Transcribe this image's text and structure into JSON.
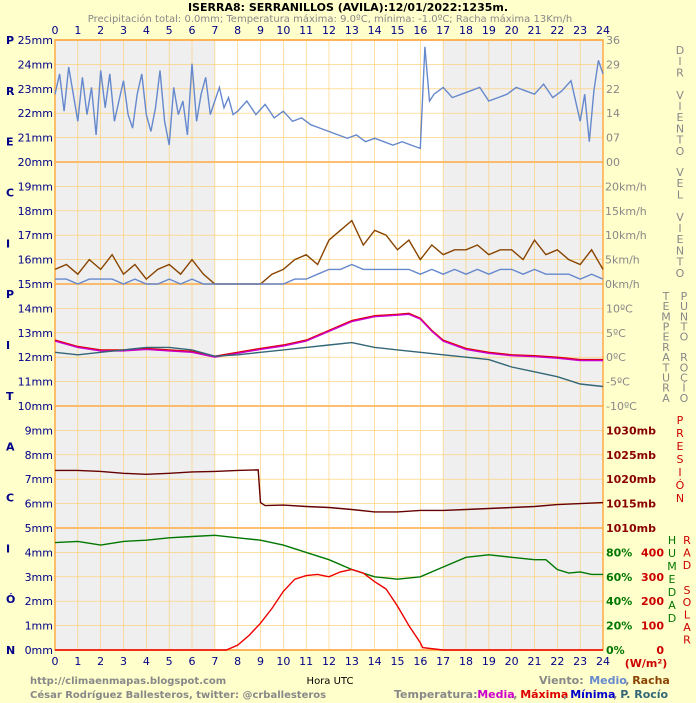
{
  "chart_data": {
    "type": "line",
    "title": "ISERRA8: SERRANILLOS (AVILA):12/01/2022:1235m.",
    "subtitle": "Precipitación total: 0.0mm; Temperatura máxima: 9.0ºC, mínima: -1.0ºC; Racha máxima 13Km/h",
    "xlabel": "Hora UTC",
    "x_ticks": [
      "0",
      "1",
      "2",
      "3",
      "4",
      "5",
      "6",
      "7",
      "8",
      "9",
      "10",
      "11",
      "12",
      "13",
      "14",
      "15",
      "16",
      "17",
      "18",
      "19",
      "20",
      "21",
      "22",
      "23",
      "24"
    ],
    "xlim": [
      0,
      24
    ],
    "left_axis": {
      "title_letters": [
        "P",
        "R",
        "E",
        "C",
        "I",
        "P",
        "I",
        "T",
        "A",
        "C",
        "I",
        "Ó",
        "N"
      ],
      "ticks": [
        "0mm",
        "1mm",
        "2mm",
        "3mm",
        "4mm",
        "5mm",
        "6mm",
        "7mm",
        "8mm",
        "9mm",
        "10mm",
        "11mm",
        "12mm",
        "13mm",
        "14mm",
        "15mm",
        "16mm",
        "17mm",
        "18mm",
        "19mm",
        "20mm",
        "21mm",
        "22mm",
        "23mm",
        "24mm",
        "25mm"
      ],
      "ylim": [
        0,
        25
      ]
    },
    "panels": [
      {
        "name": "direccion_viento",
        "axis_title": "DIR VIENTO",
        "ticks": [
          "00",
          "07",
          "14",
          "22",
          "29",
          "36"
        ],
        "ylim": [
          0,
          36
        ],
        "series": [
          {
            "color": "#6688cc",
            "x": [
              0,
              0.2,
              0.4,
              0.6,
              0.8,
              1,
              1.2,
              1.4,
              1.6,
              1.8,
              2,
              2.2,
              2.4,
              2.6,
              2.8,
              3,
              3.2,
              3.4,
              3.6,
              3.8,
              4,
              4.2,
              4.4,
              4.6,
              4.8,
              5,
              5.2,
              5.4,
              5.6,
              5.8,
              6,
              6.2,
              6.4,
              6.6,
              6.8,
              7,
              7.2,
              7.4,
              7.6,
              7.8,
              8,
              8.4,
              8.8,
              9.2,
              9.6,
              10,
              10.4,
              10.8,
              11.2,
              11.6,
              12,
              12.4,
              12.8,
              13.2,
              13.6,
              14,
              14.4,
              14.8,
              15.2,
              15.6,
              16,
              16.2,
              16.4,
              16.6,
              16.8,
              17,
              17.4,
              17.8,
              18.2,
              18.6,
              19,
              19.4,
              19.8,
              20.2,
              20.6,
              21,
              21.4,
              21.8,
              22.2,
              22.6,
              23,
              23.2,
              23.4,
              23.6,
              23.8,
              24
            ],
            "y": [
              20,
              26,
              15,
              28,
              20,
              12,
              25,
              14,
              22,
              8,
              27,
              16,
              26,
              12,
              18,
              24,
              14,
              10,
              20,
              26,
              14,
              9,
              16,
              27,
              12,
              5,
              22,
              14,
              18,
              8,
              29,
              12,
              20,
              25,
              14,
              18,
              22,
              16,
              19,
              14,
              15,
              18,
              14,
              17,
              13,
              15,
              12,
              13,
              11,
              10,
              9,
              8,
              7,
              8,
              6,
              7,
              6,
              5,
              6,
              5,
              4,
              34,
              18,
              20,
              21,
              22,
              19,
              20,
              21,
              22,
              18,
              19,
              20,
              22,
              21,
              20,
              23,
              19,
              21,
              24,
              12,
              20,
              6,
              21,
              30,
              26
            ]
          }
        ]
      },
      {
        "name": "velocidad_viento",
        "axis_title": "VEL VIENTO",
        "ticks": [
          "0km/h",
          "5km/h",
          "10km/h",
          "15km/h",
          "20km/h"
        ],
        "ylim": [
          0,
          25
        ],
        "series": [
          {
            "name": "Racha",
            "color": "#884400",
            "x": [
              0,
              0.5,
              1,
              1.5,
              2,
              2.5,
              3,
              3.5,
              4,
              4.5,
              5,
              5.5,
              6,
              6.5,
              7,
              7.5,
              8,
              8.5,
              9,
              9.5,
              10,
              10.5,
              11,
              11.5,
              12,
              12.5,
              13,
              13.5,
              14,
              14.5,
              15,
              15.5,
              16,
              16.5,
              17,
              17.5,
              18,
              18.5,
              19,
              19.5,
              20,
              20.5,
              21,
              21.5,
              22,
              22.5,
              23,
              23.5,
              24
            ],
            "y": [
              3,
              4,
              2,
              5,
              3,
              6,
              2,
              4,
              1,
              3,
              4,
              2,
              5,
              2,
              0,
              0,
              0,
              0,
              0,
              2,
              3,
              5,
              6,
              4,
              9,
              11,
              13,
              8,
              11,
              10,
              7,
              9,
              5,
              8,
              6,
              7,
              7,
              8,
              6,
              7,
              7,
              5,
              9,
              6,
              7,
              5,
              4,
              7,
              3
            ]
          },
          {
            "name": "Medio",
            "color": "#6688cc",
            "x": [
              0,
              0.5,
              1,
              1.5,
              2,
              2.5,
              3,
              3.5,
              4,
              4.5,
              5,
              5.5,
              6,
              6.5,
              7,
              7.5,
              8,
              8.5,
              9,
              9.5,
              10,
              10.5,
              11,
              11.5,
              12,
              12.5,
              13,
              13.5,
              14,
              14.5,
              15,
              15.5,
              16,
              16.5,
              17,
              17.5,
              18,
              18.5,
              19,
              19.5,
              20,
              20.5,
              21,
              21.5,
              22,
              22.5,
              23,
              23.5,
              24
            ],
            "y": [
              1,
              1,
              0,
              1,
              1,
              1,
              0,
              1,
              0,
              0,
              1,
              0,
              1,
              0,
              0,
              0,
              0,
              0,
              0,
              0,
              0,
              1,
              1,
              2,
              3,
              3,
              4,
              3,
              3,
              3,
              3,
              3,
              2,
              3,
              2,
              3,
              2,
              3,
              2,
              3,
              3,
              2,
              3,
              2,
              2,
              2,
              1,
              2,
              1
            ]
          }
        ]
      },
      {
        "name": "temperatura",
        "axis_title": "TEMPERATURA",
        "axis_title2": "PUNTO ROCÍO",
        "ticks": [
          "-10ºC",
          "-5ºC",
          "0ºC",
          "5ºC",
          "10ºC"
        ],
        "ylim": [
          -10,
          15
        ],
        "series": [
          {
            "name": "Máxima",
            "color": "#dd0000",
            "x": [
              0,
              1,
              2,
              3,
              4,
              5,
              6,
              7,
              8,
              9,
              10,
              11,
              12,
              13,
              14,
              15,
              15.5,
              16,
              16.5,
              17,
              18,
              19,
              20,
              21,
              22,
              23,
              24
            ],
            "y": [
              3.5,
              2.2,
              1.5,
              1.5,
              1.8,
              1.5,
              1.2,
              0.2,
              1,
              1.8,
              2.5,
              3.5,
              5.5,
              7.5,
              8.5,
              8.8,
              9.0,
              8,
              5.5,
              3.5,
              1.8,
              1.0,
              0.5,
              0.3,
              0,
              -0.5,
              -0.5
            ]
          },
          {
            "name": "Media",
            "color": "#cc00cc",
            "x": [
              0,
              1,
              2,
              3,
              4,
              5,
              6,
              7,
              8,
              9,
              10,
              11,
              12,
              13,
              14,
              15,
              15.5,
              16,
              16.5,
              17,
              18,
              19,
              20,
              21,
              22,
              23,
              24
            ],
            "y": [
              3.3,
              2.0,
              1.3,
              1.3,
              1.6,
              1.3,
              1.0,
              0,
              0.8,
              1.6,
              2.3,
              3.3,
              5.3,
              7.3,
              8.3,
              8.6,
              8.8,
              7.8,
              5.3,
              3.3,
              1.6,
              0.8,
              0.3,
              0.1,
              -0.2,
              -0.7,
              -0.7
            ]
          },
          {
            "name": "P. Rocío",
            "color": "#336677",
            "x": [
              0,
              1,
              2,
              3,
              4,
              5,
              6,
              7,
              8,
              9,
              10,
              11,
              12,
              13,
              14,
              15,
              16,
              17,
              18,
              19,
              20,
              21,
              22,
              23,
              24
            ],
            "y": [
              1,
              0.5,
              1,
              1.5,
              2,
              2,
              1.5,
              0.2,
              0.5,
              1,
              1.5,
              2,
              2.5,
              3,
              2,
              1.5,
              1,
              0.5,
              0,
              -0.5,
              -2,
              -3,
              -4,
              -5.5,
              -6
            ]
          }
        ]
      },
      {
        "name": "presion",
        "axis_title": "PRESIÓN",
        "ticks": [
          "1010mb",
          "1015mb",
          "1020mb",
          "1025mb",
          "1030mb"
        ],
        "ylim": [
          1010,
          1035
        ],
        "series": [
          {
            "color": "#660000",
            "x": [
              0,
              1,
              2,
              3,
              4,
              5,
              6,
              7,
              8,
              8.9,
              9.0,
              9.2,
              10,
              11,
              12,
              13,
              14,
              15,
              16,
              17,
              18,
              19,
              20,
              21,
              22,
              23,
              24
            ],
            "y": [
              1021.8,
              1021.8,
              1021.6,
              1021.2,
              1021.0,
              1021.2,
              1021.5,
              1021.6,
              1021.8,
              1021.9,
              1015.2,
              1014.6,
              1014.7,
              1014.4,
              1014.2,
              1013.8,
              1013.3,
              1013.3,
              1013.6,
              1013.6,
              1013.8,
              1014.0,
              1014.2,
              1014.4,
              1014.8,
              1015.0,
              1015.2
            ]
          }
        ]
      },
      {
        "name": "humedad_radiacion",
        "axis_title": "HUMEDAD",
        "axis_title2": "RAD SOLAR",
        "ticks_humedad": [
          "0%",
          "20%",
          "40%",
          "60%",
          "80%"
        ],
        "ticks_radiacion": [
          "0",
          "100",
          "200",
          "300",
          "400"
        ],
        "radiacion_unit": "(W/m²)",
        "ylim_humedad": [
          0,
          100
        ],
        "ylim_radiacion": [
          0,
          500
        ],
        "series": [
          {
            "name": "Humedad",
            "color": "#007700",
            "axis": "humedad",
            "x": [
              0,
              1,
              2,
              3,
              4,
              5,
              6,
              7,
              8,
              9,
              10,
              11,
              12,
              13,
              14,
              15,
              16,
              17,
              18,
              19,
              20,
              21,
              21.5,
              22,
              22.5,
              23,
              23.5,
              24
            ],
            "y": [
              88,
              89,
              86,
              89,
              90,
              92,
              93,
              94,
              92,
              90,
              86,
              80,
              74,
              66,
              60,
              58,
              60,
              68,
              76,
              78,
              76,
              74,
              74,
              66,
              63,
              64,
              62,
              62
            ]
          },
          {
            "name": "Radiación solar",
            "color": "#ee0000",
            "axis": "radiacion",
            "x": [
              0,
              7.5,
              8,
              8.5,
              9,
              9.5,
              10,
              10.5,
              11,
              11.5,
              12,
              12.5,
              13,
              13.5,
              14,
              14.5,
              15,
              15.5,
              16,
              16.1,
              17,
              24
            ],
            "y": [
              0,
              0,
              20,
              60,
              110,
              170,
              240,
              290,
              305,
              310,
              300,
              320,
              330,
              315,
              280,
              250,
              180,
              100,
              30,
              10,
              0,
              0
            ]
          }
        ]
      }
    ],
    "left_footer": [
      "http://climaenmapas.blogspot.com",
      "César Rodríguez Ballesteros, twitter: @crballesteros"
    ],
    "legend_viento": {
      "label": "Viento:",
      "items": [
        {
          "text": "Medio",
          "color": "#6688cc"
        },
        {
          "text": "Racha",
          "color": "#884400"
        }
      ]
    },
    "legend_temperatura": {
      "label": "Temperatura:",
      "items": [
        {
          "text": "Media",
          "color": "#cc00cc"
        },
        {
          "text": "Máxima",
          "color": "#dd0000"
        },
        {
          "text": "Mínima",
          "color": "#0000cc"
        },
        {
          "text": "P. Rocío",
          "color": "#336677"
        }
      ]
    },
    "colors": {
      "background": "#ffffcc",
      "plot_bg": "#ffffff",
      "night_band": "#efefef",
      "grid": "#ffcc66",
      "axis_text": "#000088",
      "right_title": "#888888",
      "pres_title": "#880000"
    }
  }
}
